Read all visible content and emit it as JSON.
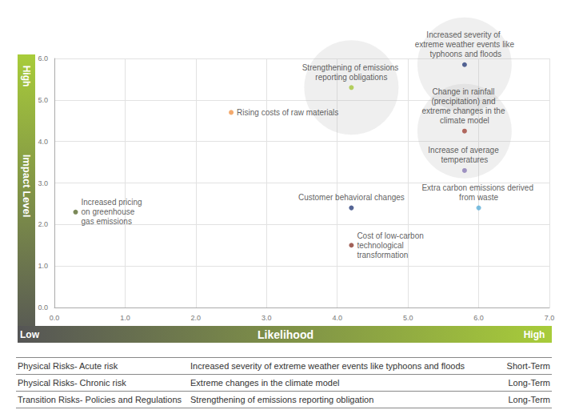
{
  "chart_data": {
    "type": "scatter",
    "xlabel": "Likelihood",
    "ylabel": "Impact Level",
    "low_label": "Low",
    "high_label": "High",
    "xlim": [
      0,
      7
    ],
    "ylim": [
      0,
      6
    ],
    "xticks": [
      {
        "value": 0,
        "label": "0.0"
      },
      {
        "value": 1,
        "label": "1.0"
      },
      {
        "value": 2,
        "label": "2.0"
      },
      {
        "value": 3,
        "label": "3.0"
      },
      {
        "value": 4,
        "label": "4.0"
      },
      {
        "value": 5,
        "label": "5.0"
      },
      {
        "value": 6,
        "label": "6.0"
      },
      {
        "value": 7,
        "label": "7.0"
      }
    ],
    "yticks": [
      {
        "value": 0,
        "label": "0.0"
      },
      {
        "value": 1,
        "label": "1.0"
      },
      {
        "value": 2,
        "label": "2.0"
      },
      {
        "value": 3,
        "label": "3.0"
      },
      {
        "value": 4,
        "label": "4.0"
      },
      {
        "value": 5,
        "label": "5.0"
      },
      {
        "value": 6,
        "label": "6.0"
      }
    ],
    "grid": true,
    "points": [
      {
        "label": "Increased pricing on greenhouse gas emissions",
        "x": 0.3,
        "y": 2.3,
        "color": "#5a6b2e",
        "highlighted": false
      },
      {
        "label": "Rising costs of raw materials",
        "x": 2.5,
        "y": 4.7,
        "color": "#f0954a",
        "highlighted": false
      },
      {
        "label": "Strengthening of emissions reporting obligations",
        "x": 4.2,
        "y": 5.3,
        "color": "#a4c639",
        "highlighted": true
      },
      {
        "label": "Increased severity of extreme weather events like typhoons and floods",
        "x": 5.8,
        "y": 5.85,
        "color": "#2b3f7a",
        "highlighted": true
      },
      {
        "label": "Change in rainfall (precipitation) and extreme changes in the climate model",
        "x": 5.8,
        "y": 4.25,
        "color": "#a0453a",
        "highlighted": true
      },
      {
        "label": "Increase of average temperatures",
        "x": 5.8,
        "y": 3.3,
        "color": "#8a7ab5",
        "highlighted": false
      },
      {
        "label": "Extra carbon emissions derived from waste",
        "x": 6.0,
        "y": 2.4,
        "color": "#5aaed8",
        "highlighted": false
      },
      {
        "label": "Customer behavioral changes",
        "x": 4.2,
        "y": 2.4,
        "color": "#2b3f7a",
        "highlighted": false
      },
      {
        "label": "Cost of low-carbon technological transformation",
        "x": 4.2,
        "y": 1.5,
        "color": "#8b3a2e",
        "highlighted": false
      }
    ]
  },
  "table": {
    "rows": [
      [
        "Physical Risks- Acute risk",
        "Increased severity of extreme weather events like typhoons and floods",
        "Short-Term"
      ],
      [
        "Physical Risks- Chronic risk",
        "Extreme changes in the climate model",
        "Long-Term"
      ],
      [
        "Transition Risks- Policies and Regulations",
        "Strengthening of emissions reporting obligation",
        "Long-Term"
      ]
    ]
  }
}
